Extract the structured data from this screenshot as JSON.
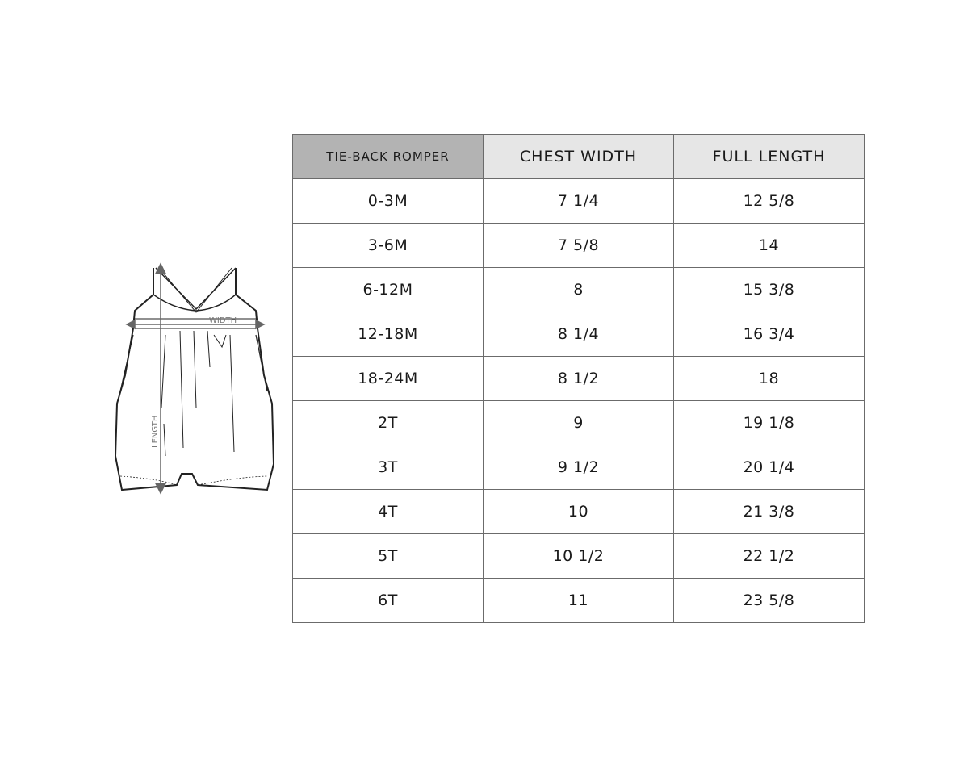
{
  "illustration": {
    "width_label": "WIDTH",
    "length_label": "LENGTH"
  },
  "table": {
    "headers": [
      "TIE-BACK ROMPER",
      "CHEST WIDTH",
      "FULL LENGTH"
    ],
    "header_colors": [
      "#b3b3b3",
      "#e6e6e6",
      "#e6e6e6"
    ],
    "rows": [
      [
        "0-3M",
        "7 1/4",
        "12 5/8"
      ],
      [
        "3-6M",
        "7 5/8",
        "14"
      ],
      [
        "6-12M",
        "8",
        "15 3/8"
      ],
      [
        "12-18M",
        "8 1/4",
        "16 3/4"
      ],
      [
        "18-24M",
        "8 1/2",
        "18"
      ],
      [
        "2T",
        "9",
        "19 1/8"
      ],
      [
        "3T",
        "9 1/2",
        "20 1/4"
      ],
      [
        "4T",
        "10",
        "21 3/8"
      ],
      [
        "5T",
        "10 1/2",
        "22 1/2"
      ],
      [
        "6T",
        "11",
        "23 5/8"
      ]
    ]
  }
}
